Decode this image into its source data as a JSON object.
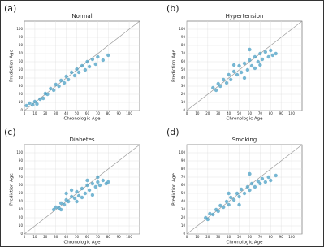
{
  "chart_data": [
    {
      "type": "scatter",
      "panel": "(a)",
      "title": "Normal",
      "x_label": "Chronologic Age",
      "y_label": "Prediction Age",
      "color": "#4a9fc4",
      "grid": true,
      "xlim": [
        0,
        110
      ],
      "ylim": [
        0,
        110
      ],
      "xticks": [
        0,
        10,
        20,
        30,
        40,
        50,
        60,
        70,
        80,
        90,
        100
      ],
      "yticks": [
        0,
        10,
        20,
        30,
        40,
        50,
        60,
        70,
        80,
        90,
        100
      ],
      "x": [
        2,
        5,
        8,
        10,
        12,
        15,
        18,
        20,
        22,
        25,
        28,
        30,
        33,
        35,
        38,
        40,
        42,
        45,
        48,
        50,
        52,
        55,
        58,
        60,
        62,
        65,
        68,
        70,
        75,
        80
      ],
      "y": [
        6,
        9,
        7,
        11,
        8,
        14,
        15,
        21,
        20,
        27,
        25,
        32,
        30,
        37,
        34,
        42,
        38,
        47,
        43,
        51,
        47,
        55,
        50,
        60,
        54,
        63,
        57,
        66,
        62,
        68
      ]
    },
    {
      "type": "scatter",
      "panel": "(b)",
      "title": "Hypertension",
      "x_label": "Chronologic Age",
      "y_label": "Prediction Age",
      "color": "#4a9fc4",
      "grid": true,
      "xlim": [
        0,
        110
      ],
      "ylim": [
        0,
        110
      ],
      "xticks": [
        0,
        10,
        20,
        30,
        40,
        50,
        60,
        70,
        80,
        90,
        100
      ],
      "yticks": [
        0,
        10,
        20,
        30,
        40,
        50,
        60,
        70,
        80,
        90,
        100
      ],
      "x": [
        25,
        28,
        30,
        32,
        35,
        38,
        40,
        42,
        45,
        48,
        50,
        52,
        55,
        58,
        60,
        62,
        65,
        68,
        70,
        72,
        75,
        78,
        80,
        82,
        85,
        55,
        60,
        65,
        70,
        45
      ],
      "y": [
        28,
        25,
        33,
        30,
        38,
        34,
        44,
        38,
        48,
        44,
        55,
        47,
        58,
        50,
        62,
        55,
        66,
        60,
        70,
        63,
        72,
        66,
        74,
        68,
        70,
        40,
        75,
        52,
        56,
        56
      ]
    },
    {
      "type": "scatter",
      "panel": "(c)",
      "title": "Diabetes",
      "x_label": "Chronologic Age",
      "y_label": "Prediction Age",
      "color": "#4a9fc4",
      "grid": true,
      "xlim": [
        0,
        110
      ],
      "ylim": [
        0,
        110
      ],
      "xticks": [
        0,
        10,
        20,
        30,
        40,
        50,
        60,
        70,
        80,
        90,
        100
      ],
      "yticks": [
        0,
        10,
        20,
        30,
        40,
        50,
        60,
        70,
        80,
        90,
        100
      ],
      "x": [
        28,
        30,
        33,
        35,
        38,
        40,
        42,
        45,
        48,
        50,
        52,
        55,
        58,
        60,
        62,
        65,
        68,
        70,
        72,
        75,
        78,
        80,
        50,
        55,
        60,
        65,
        45,
        40,
        70,
        35
      ],
      "y": [
        30,
        33,
        32,
        38,
        36,
        42,
        40,
        46,
        44,
        52,
        47,
        56,
        50,
        60,
        54,
        62,
        58,
        64,
        60,
        66,
        62,
        64,
        40,
        45,
        66,
        48,
        54,
        50,
        70,
        30
      ]
    },
    {
      "type": "scatter",
      "panel": "(d)",
      "title": "Smoking",
      "x_label": "Chronologic Age",
      "y_label": "Prediction Age",
      "color": "#4a9fc4",
      "grid": true,
      "xlim": [
        0,
        110
      ],
      "ylim": [
        0,
        110
      ],
      "xticks": [
        0,
        10,
        20,
        30,
        40,
        50,
        60,
        70,
        80,
        90,
        100
      ],
      "yticks": [
        0,
        10,
        20,
        30,
        40,
        50,
        60,
        70,
        80,
        90,
        100
      ],
      "x": [
        18,
        20,
        22,
        25,
        28,
        30,
        32,
        35,
        38,
        40,
        42,
        45,
        48,
        50,
        52,
        55,
        58,
        60,
        62,
        65,
        68,
        70,
        72,
        75,
        78,
        80,
        85,
        60,
        50,
        40
      ],
      "y": [
        20,
        18,
        25,
        24,
        30,
        28,
        35,
        33,
        40,
        36,
        45,
        42,
        50,
        46,
        55,
        50,
        58,
        54,
        62,
        58,
        65,
        62,
        68,
        64,
        70,
        66,
        72,
        74,
        36,
        50
      ]
    }
  ]
}
